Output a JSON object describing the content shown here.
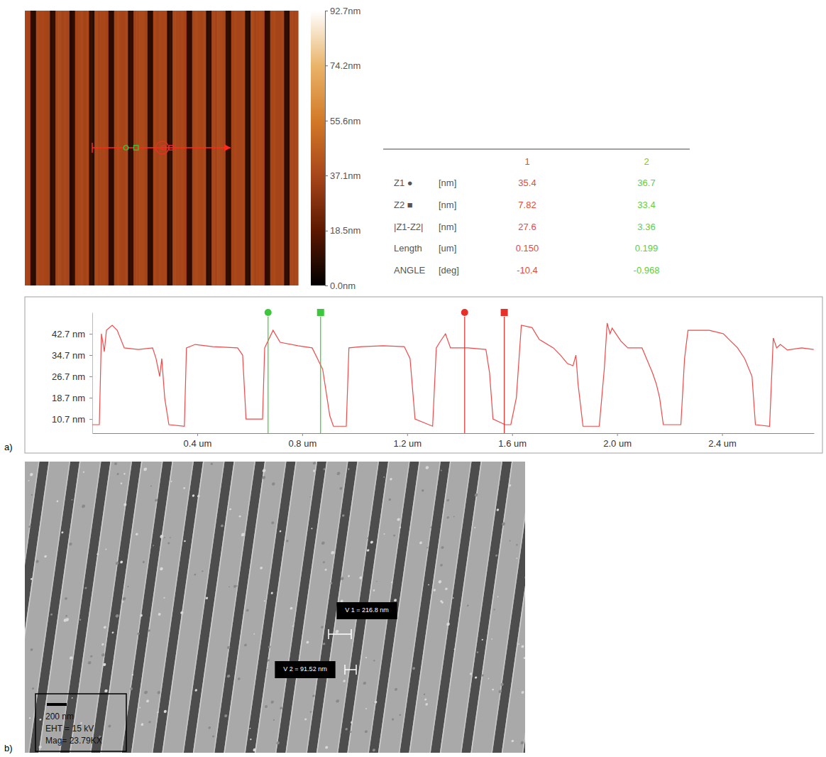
{
  "chart_data": [
    {
      "type": "heatmap",
      "cells": [
        [
          37.2,
          36.1,
          9.4,
          8.3,
          38.0,
          36.9,
          37.5,
          36.4,
          35.8,
          8.9,
          10.2,
          37.7,
          38.4,
          36.2,
          37.9,
          36.6,
          8.1,
          9.7,
          36.8,
          37.3,
          38.1,
          36.0,
          37.4,
          10.5,
          8.6,
          38.6,
          36.5,
          37.0,
          37.6,
          35.9,
          9.1,
          8.4,
          37.1,
          38.9,
          36.7,
          36.3,
          37.8,
          8.7,
          9.9,
          36.4,
          37.6,
          38.2,
          38.3,
          36.2,
          9.6,
          8.2,
          37.9,
          36.1,
          37.3,
          36.8,
          37.1,
          8.5,
          10.1,
          38.1,
          37.0,
          36.6,
          37.4,
          36.0,
          9.8,
          8.8,
          36.9,
          38.5,
          37.2,
          36.1,
          38.0,
          8.3,
          9.2,
          37.5,
          36.3,
          38.4,
          37.7,
          36.5,
          10.3,
          8.6,
          36.2,
          37.9,
          36.8,
          36.6,
          37.3,
          9.0,
          8.1,
          38.7,
          36.4,
          37.6,
          38.1,
          36.9,
          8.8,
          9.5,
          37.0,
          38.2,
          36.1,
          36.4,
          37.5,
          9.3,
          8.7,
          37.8,
          36.6,
          37.4
        ]
      ],
      "colorbar_range": [
        0,
        92.7
      ],
      "colorbar_ticks": [
        {
          "value": 0,
          "label": "0.0nm"
        },
        {
          "value": 18.5,
          "label": "18.5nm"
        },
        {
          "value": 37.1,
          "label": "37.1nm"
        },
        {
          "value": 55.6,
          "label": "55.6nm"
        },
        {
          "value": 74.2,
          "label": "74.2nm"
        },
        {
          "value": 92.7,
          "label": "92.7nm"
        }
      ]
    },
    {
      "type": "line",
      "color": "#f04a4a",
      "x": [
        0,
        0.027,
        0.035,
        0.046,
        0.054,
        0.076,
        0.095,
        0.122,
        0.176,
        0.23,
        0.243,
        0.257,
        0.265,
        0.276,
        0.292,
        0.351,
        0.359,
        0.392,
        0.459,
        0.554,
        0.573,
        0.586,
        0.649,
        0.657,
        0.689,
        0.716,
        0.784,
        0.838,
        0.878,
        0.905,
        0.919,
        0.968,
        0.978,
        1.027,
        1.108,
        1.189,
        1.211,
        1.23,
        1.297,
        1.311,
        1.324,
        1.346,
        1.365,
        1.432,
        1.5,
        1.514,
        1.527,
        1.573,
        1.595,
        1.616,
        1.635,
        1.676,
        1.703,
        1.757,
        1.784,
        1.811,
        1.832,
        1.843,
        1.851,
        1.87,
        1.932,
        1.951,
        1.962,
        1.973,
        1.981,
        2.014,
        2.041,
        2.095,
        2.135,
        2.149,
        2.162,
        2.176,
        2.243,
        2.257,
        2.27,
        2.351,
        2.405,
        2.432,
        2.459,
        2.486,
        2.514,
        2.527,
        2.581,
        2.595,
        2.608,
        2.622,
        2.649,
        2.703,
        2.749
      ],
      "values": [
        8.6,
        8.6,
        42.7,
        36.0,
        44.0,
        45.9,
        44.0,
        37.4,
        36.8,
        37.4,
        33.4,
        26.7,
        33.4,
        18.7,
        8.6,
        8.0,
        37.4,
        38.7,
        37.9,
        37.4,
        34.7,
        10.7,
        10.7,
        37.4,
        44.0,
        39.5,
        38.2,
        37.4,
        29.4,
        12.0,
        8.0,
        8.0,
        37.4,
        37.9,
        38.2,
        37.9,
        33.4,
        10.7,
        8.0,
        37.4,
        39.5,
        42.7,
        37.4,
        37.4,
        36.8,
        28.0,
        10.7,
        8.6,
        8.6,
        18.7,
        45.9,
        45.0,
        40.6,
        37.4,
        34.7,
        31.5,
        30.7,
        34.7,
        24.0,
        8.0,
        8.0,
        29.4,
        46.7,
        42.7,
        44.8,
        40.0,
        37.4,
        37.4,
        28.0,
        24.0,
        18.7,
        8.6,
        8.6,
        33.4,
        44.0,
        44.0,
        42.7,
        40.0,
        37.4,
        33.4,
        26.7,
        8.6,
        8.0,
        41.1,
        37.4,
        38.7,
        36.6,
        37.4,
        36.8
      ],
      "xlim": [
        0,
        2.75
      ],
      "xticks": [
        {
          "value": 0.4,
          "label": "0.4 um"
        },
        {
          "value": 0.8,
          "label": "0.8 um"
        },
        {
          "value": 1.2,
          "label": "1.2 um"
        },
        {
          "value": 1.6,
          "label": "1.6 um"
        },
        {
          "value": 2.0,
          "label": "2.0 um"
        },
        {
          "value": 2.4,
          "label": "2.4 um"
        }
      ],
      "ylim": [
        5.4,
        50.7
      ],
      "yticks": [
        {
          "value": 10.7,
          "label": "10.7 nm"
        },
        {
          "value": 18.7,
          "label": "18.7 nm"
        },
        {
          "value": 26.7,
          "label": "26.7 nm"
        },
        {
          "value": 34.7,
          "label": "34.7 nm"
        },
        {
          "value": 42.7,
          "label": "42.7 nm"
        }
      ],
      "cursors": [
        {
          "x": 0.67,
          "marker": "circle",
          "color": "#3cc83c"
        },
        {
          "x": 0.87,
          "marker": "square",
          "color": "#3cc83c"
        },
        {
          "x": 1.419,
          "marker": "circle",
          "color": "#e8302a"
        },
        {
          "x": 1.57,
          "marker": "square",
          "color": "#e8302a"
        }
      ]
    }
  ],
  "table": {
    "columns": [
      {
        "label": "1",
        "color": "#e8483a"
      },
      {
        "label": "2",
        "color": "#5fcf3a"
      }
    ],
    "rows": [
      {
        "label": "Z1 ●",
        "unit": "[nm]",
        "values": [
          "35.4",
          "36.7"
        ]
      },
      {
        "label": "Z2 ■",
        "unit": "[nm]",
        "values": [
          "7.82",
          "33.4"
        ]
      },
      {
        "label": "|Z1-Z2|",
        "unit": "[nm]",
        "values": [
          "27.6",
          "3.36"
        ]
      },
      {
        "label": "Length",
        "unit": "[um]",
        "values": [
          "0.150",
          "0.199"
        ]
      },
      {
        "label": "ANGLE",
        "unit": "[deg]",
        "values": [
          "-10.4",
          "-0.968"
        ]
      }
    ]
  },
  "sem_image": {
    "annotations": [
      "V 1 = 216.8 nm",
      "V 2 = 91.52 nm"
    ],
    "scale_bar": "200 nm",
    "info": [
      "EHT = 15 kV",
      "Mag= 23.79KX"
    ]
  },
  "panel_labels": [
    "a)",
    "b)"
  ]
}
